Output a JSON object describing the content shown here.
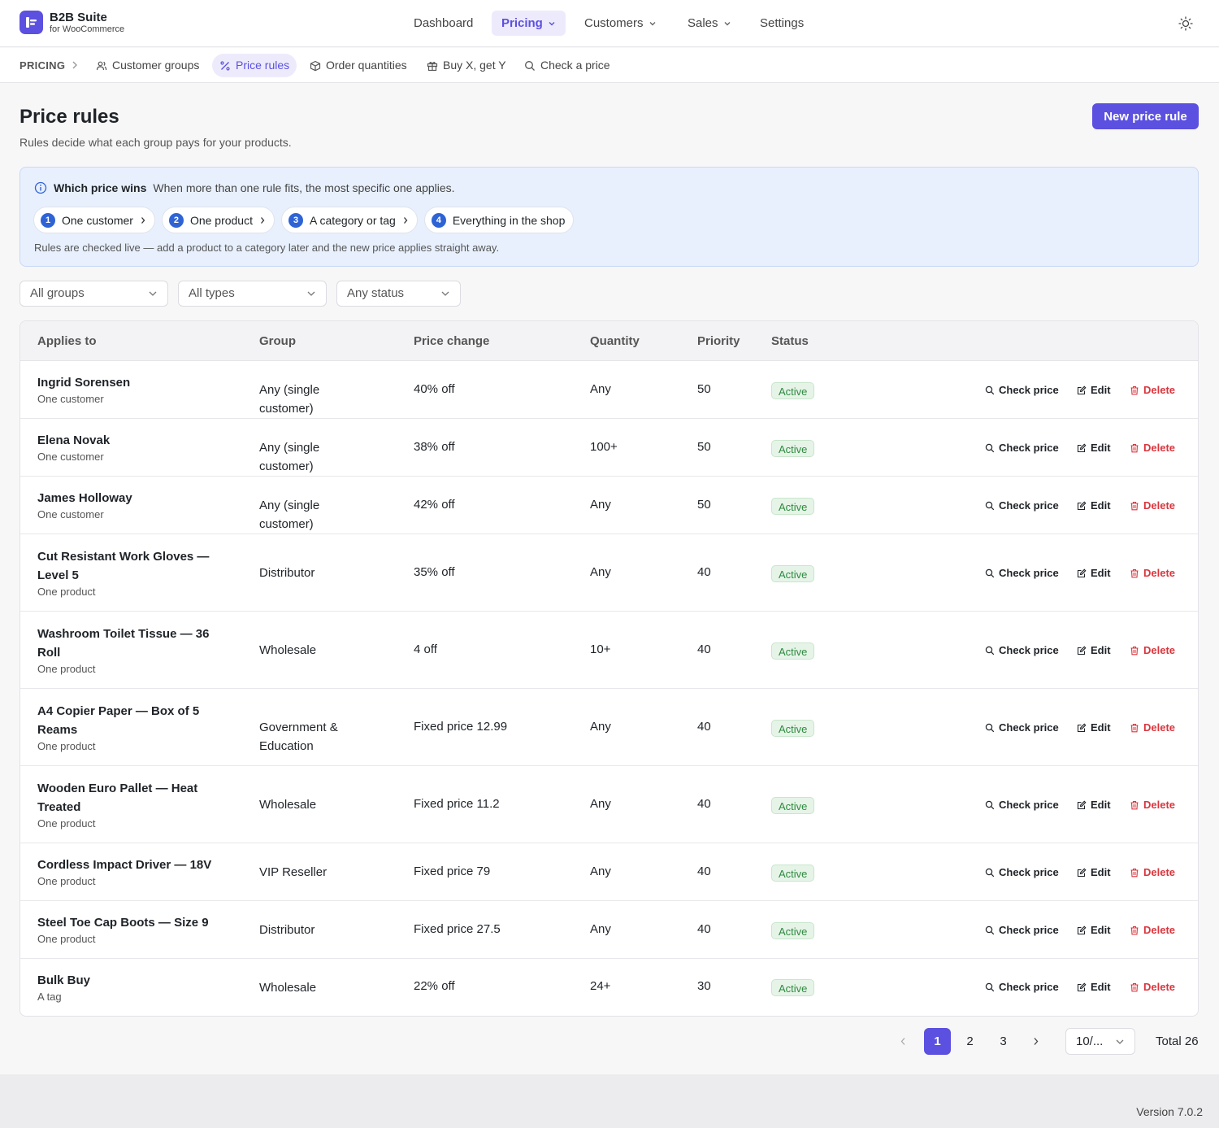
{
  "brand": {
    "name": "B2B Suite",
    "subtitle": "for WooCommerce"
  },
  "nav": {
    "dashboard": "Dashboard",
    "pricing": "Pricing",
    "customers": "Customers",
    "sales": "Sales",
    "settings": "Settings"
  },
  "subnav": {
    "section": "PRICING",
    "items": [
      "Customer groups",
      "Price rules",
      "Order quantities",
      "Buy X, get Y",
      "Check a price"
    ],
    "active": "Price rules"
  },
  "header": {
    "title": "Price rules",
    "subtitle": "Rules decide what each group pays for your products.",
    "new_button": "New price rule"
  },
  "info": {
    "heading": "Which price wins",
    "text": "When more than one rule fits, the most specific one applies.",
    "steps": [
      {
        "num": "1",
        "label": "One customer"
      },
      {
        "num": "2",
        "label": "One product"
      },
      {
        "num": "3",
        "label": "A category or tag"
      },
      {
        "num": "4",
        "label": "Everything in the shop"
      }
    ],
    "footnote": "Rules are checked live — add a product to a category later and the new price applies straight away."
  },
  "filters": {
    "group": "All groups",
    "type": "All types",
    "status": "Any status"
  },
  "table": {
    "columns": [
      "Applies to",
      "Group",
      "Price change",
      "Quantity",
      "Priority",
      "Status"
    ],
    "actions": {
      "check": "Check price",
      "edit": "Edit",
      "delete": "Delete"
    },
    "rows": [
      {
        "name": "Ingrid Sorensen",
        "kind": "One customer",
        "group": "Any (single customer)",
        "change": "40% off",
        "qty": "Any",
        "priority": "50",
        "status": "Active"
      },
      {
        "name": "Elena Novak",
        "kind": "One customer",
        "group": "Any (single customer)",
        "change": "38% off",
        "qty": "100+",
        "priority": "50",
        "status": "Active"
      },
      {
        "name": "James Holloway",
        "kind": "One customer",
        "group": "Any (single customer)",
        "change": "42% off",
        "qty": "Any",
        "priority": "50",
        "status": "Active"
      },
      {
        "name": "Cut Resistant Work Gloves — Level 5",
        "kind": "One product",
        "group": "Distributor",
        "change": "35% off",
        "qty": "Any",
        "priority": "40",
        "status": "Active"
      },
      {
        "name": "Washroom Toilet Tissue — 36 Roll",
        "kind": "One product",
        "group": "Wholesale",
        "change": "4 off",
        "qty": "10+",
        "priority": "40",
        "status": "Active"
      },
      {
        "name": "A4 Copier Paper — Box of 5 Reams",
        "kind": "One product",
        "group": "Government & Education",
        "change": "Fixed price 12.99",
        "qty": "Any",
        "priority": "40",
        "status": "Active"
      },
      {
        "name": "Wooden Euro Pallet — Heat Treated",
        "kind": "One product",
        "group": "Wholesale",
        "change": "Fixed price 11.2",
        "qty": "Any",
        "priority": "40",
        "status": "Active"
      },
      {
        "name": "Cordless Impact Driver — 18V",
        "kind": "One product",
        "group": "VIP Reseller",
        "change": "Fixed price 79",
        "qty": "Any",
        "priority": "40",
        "status": "Active"
      },
      {
        "name": "Steel Toe Cap Boots — Size 9",
        "kind": "One product",
        "group": "Distributor",
        "change": "Fixed price 27.5",
        "qty": "Any",
        "priority": "40",
        "status": "Active"
      },
      {
        "name": "Bulk Buy",
        "kind": "A tag",
        "group": "Wholesale",
        "change": "22% off",
        "qty": "24+",
        "priority": "30",
        "status": "Active"
      }
    ]
  },
  "pagination": {
    "pages": [
      "1",
      "2",
      "3"
    ],
    "current": "1",
    "page_size": "10/...",
    "total": "Total 26"
  },
  "footer": {
    "version": "Version 7.0.2"
  },
  "colors": {
    "accent": "#5b50e0",
    "info_bg": "#e8f0fd",
    "active_green": "#2d8a3e",
    "danger": "#d9363e"
  }
}
